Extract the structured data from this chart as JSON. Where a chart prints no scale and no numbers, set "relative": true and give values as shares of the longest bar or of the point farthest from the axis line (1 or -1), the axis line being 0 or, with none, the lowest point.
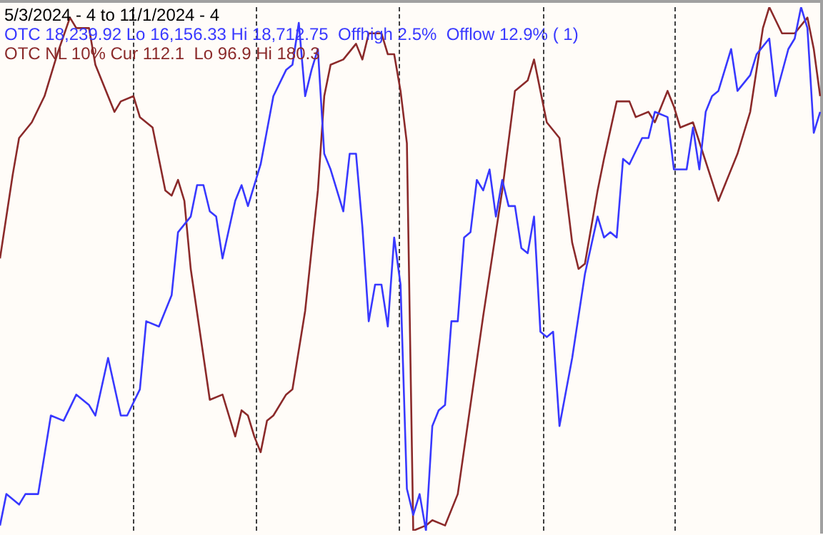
{
  "chart_data": {
    "type": "line",
    "title": "5/3/2024 - 4 to 11/1/2024 - 4",
    "relative": true,
    "marker": "none",
    "line_style": "solid",
    "categories": [
      null,
      null,
      null,
      null,
      null,
      null,
      null,
      null,
      null,
      null,
      null,
      null,
      null,
      null,
      null,
      null,
      null,
      null,
      null,
      null,
      null,
      null,
      null,
      null,
      null,
      null,
      null,
      null,
      null,
      null,
      null,
      null,
      null,
      null,
      null,
      null,
      null,
      null,
      null,
      null,
      null,
      null,
      null,
      null,
      null,
      null,
      null,
      null,
      null,
      null,
      null,
      null,
      null,
      null,
      null,
      null,
      null,
      null,
      null,
      null,
      null,
      null,
      null,
      null,
      null,
      null,
      null,
      null,
      null,
      null,
      null,
      null,
      null,
      null,
      null,
      null,
      null,
      null,
      null,
      null,
      null,
      null,
      null,
      null,
      null,
      null,
      null,
      null,
      null,
      null,
      null,
      null,
      null,
      null,
      null,
      null,
      null,
      null,
      null,
      null,
      null,
      null,
      null,
      null,
      null,
      null,
      null,
      null,
      null,
      null,
      null,
      null,
      null,
      null,
      null,
      null,
      null,
      null,
      null,
      null,
      null,
      null,
      null,
      null,
      null,
      null,
      null,
      null,
      null,
      null
    ],
    "series": [
      {
        "name": "OTC 18,239.92 Lo 16,156.33 Hi 18,712.75  Offhigh 2.5%  Offlow 12.9% ( 1)",
        "color": "#3838ff",
        "values": [
          0.01,
          0.07,
          null,
          0.05,
          0.07,
          null,
          0.07,
          null,
          0.22,
          null,
          0.21,
          null,
          0.26,
          null,
          0.24,
          0.22,
          null,
          0.33,
          null,
          0.22,
          0.22,
          null,
          0.27,
          0.4,
          null,
          0.39,
          null,
          0.45,
          0.57,
          null,
          0.6,
          0.66,
          0.66,
          0.61,
          0.6,
          0.52,
          null,
          0.63,
          0.66,
          0.62,
          null,
          0.7,
          null,
          0.83,
          null,
          0.88,
          0.89,
          0.97,
          0.83,
          0.88,
          0.92,
          0.72,
          0.69,
          null,
          0.61,
          0.72,
          0.72,
          0.58,
          0.4,
          0.47,
          0.47,
          0.39,
          0.56,
          0.47,
          0.08,
          0.03,
          0.07,
          0,
          0.2,
          0.23,
          0.24,
          0.4,
          0.4,
          0.56,
          0.57,
          0.67,
          0.65,
          0.69,
          0.6,
          0.67,
          0.62,
          0.62,
          0.54,
          0.53,
          0.6,
          0.38,
          0.37,
          0.38,
          0.2,
          null,
          0.33,
          null,
          0.49,
          null,
          0.6,
          0.56,
          0.57,
          0.56,
          0.71,
          0.7,
          null,
          0.75,
          0.75,
          0.8,
          null,
          0.79,
          0.69,
          null,
          0.69,
          0.77,
          0.69,
          0.8,
          0.83,
          0.84,
          null,
          0.92,
          0.84,
          null,
          0.87,
          0.91,
          null,
          0.94,
          0.83,
          null,
          0.92,
          0.94,
          1,
          0.96,
          0.76,
          0.8
        ]
      },
      {
        "name": "OTC NL 10% Cur 112.1  Lo 96.9 Hi 180.3",
        "color": "#8b2a2a",
        "values": [
          0.52,
          null,
          0.68,
          0.75,
          null,
          0.78,
          null,
          0.83,
          null,
          0.91,
          null,
          0.98,
          0.96,
          null,
          0.96,
          0.89,
          0.86,
          null,
          0.8,
          0.82,
          null,
          0.83,
          0.79,
          null,
          0.77,
          null,
          0.65,
          0.64,
          0.67,
          0.63,
          0.5,
          null,
          null,
          0.25,
          null,
          0.26,
          null,
          0.18,
          0.23,
          0.22,
          0.18,
          0.15,
          0.21,
          0.22,
          null,
          0.26,
          0.27,
          null,
          0.42,
          null,
          0.65,
          0.83,
          0.89,
          null,
          0.9,
          null,
          0.93,
          0.9,
          0.95,
          null,
          0.95,
          0.91,
          0.91,
          0.84,
          0.74,
          0,
          null,
          0.01,
          0.02,
          null,
          0.01,
          null,
          0.07,
          null,
          null,
          null,
          0.41,
          null,
          null,
          0.65,
          null,
          0.84,
          null,
          0.86,
          0.9,
          null,
          0.78,
          null,
          0.75,
          null,
          0.55,
          0.5,
          0.51,
          null,
          0.65,
          0.71,
          null,
          0.82,
          null,
          0.82,
          0.79,
          null,
          0.8,
          0.78,
          null,
          0.84,
          0.81,
          0.77,
          null,
          0.78,
          null,
          null,
          null,
          0.63,
          null,
          null,
          0.72,
          null,
          0.8,
          null,
          0.96,
          1,
          null,
          0.95,
          null,
          0.95,
          null,
          0.98,
          0.92,
          0.83
        ]
      }
    ]
  }
}
